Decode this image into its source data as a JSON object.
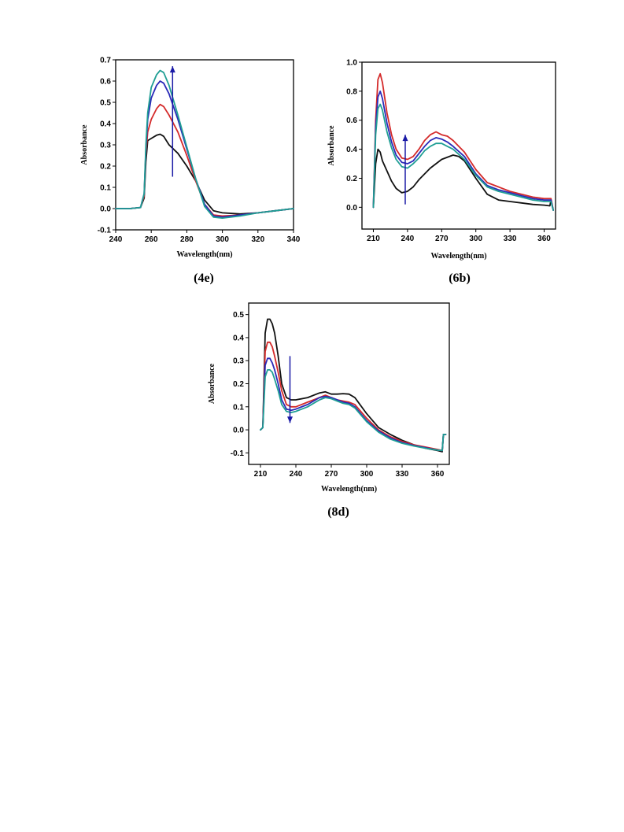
{
  "chart_data": [
    {
      "id": "4e",
      "type": "line",
      "caption": "(4e)",
      "xlabel": "Wavelength(nm)",
      "ylabel": "Absorbance",
      "xlim": [
        240,
        340
      ],
      "ylim": [
        -0.1,
        0.7
      ],
      "xticks": [
        240,
        260,
        280,
        300,
        320,
        340
      ],
      "yticks": [
        -0.1,
        0.0,
        0.1,
        0.2,
        0.3,
        0.4,
        0.5,
        0.6,
        0.7
      ],
      "arrow": {
        "direction": "up",
        "x": 272,
        "y_from": 0.15,
        "y_to": 0.67,
        "color": "#1a1aa6"
      },
      "series": [
        {
          "color": "#111111",
          "x": [
            240,
            248,
            254,
            256,
            257,
            258,
            260,
            263,
            265,
            267,
            270,
            275,
            280,
            285,
            290,
            295,
            300,
            310,
            320,
            330,
            340
          ],
          "y": [
            0.0,
            0.0,
            0.005,
            0.05,
            0.22,
            0.32,
            0.33,
            0.345,
            0.35,
            0.34,
            0.3,
            0.26,
            0.2,
            0.13,
            0.04,
            -0.01,
            -0.02,
            -0.025,
            -0.02,
            -0.01,
            0.0
          ]
        },
        {
          "color": "#d42a2a",
          "x": [
            240,
            248,
            254,
            256,
            257,
            258,
            260,
            263,
            265,
            267,
            270,
            275,
            280,
            285,
            290,
            295,
            300,
            310,
            320,
            330,
            340
          ],
          "y": [
            0.0,
            0.0,
            0.005,
            0.06,
            0.26,
            0.36,
            0.42,
            0.47,
            0.49,
            0.48,
            0.44,
            0.36,
            0.25,
            0.13,
            0.02,
            -0.03,
            -0.035,
            -0.03,
            -0.02,
            -0.01,
            0.0
          ]
        },
        {
          "color": "#2a2ab8",
          "x": [
            240,
            248,
            254,
            256,
            257,
            258,
            260,
            263,
            265,
            267,
            270,
            275,
            280,
            285,
            290,
            295,
            300,
            310,
            320,
            330,
            340
          ],
          "y": [
            0.0,
            0.0,
            0.005,
            0.07,
            0.28,
            0.42,
            0.52,
            0.58,
            0.6,
            0.59,
            0.54,
            0.42,
            0.28,
            0.14,
            0.02,
            -0.035,
            -0.04,
            -0.03,
            -0.02,
            -0.01,
            0.0
          ]
        },
        {
          "color": "#1f9e94",
          "x": [
            240,
            248,
            254,
            256,
            257,
            258,
            260,
            263,
            265,
            267,
            270,
            275,
            280,
            285,
            290,
            295,
            300,
            310,
            320,
            330,
            340
          ],
          "y": [
            0.0,
            0.0,
            0.005,
            0.07,
            0.3,
            0.45,
            0.57,
            0.63,
            0.65,
            0.64,
            0.58,
            0.44,
            0.29,
            0.14,
            0.01,
            -0.04,
            -0.045,
            -0.035,
            -0.02,
            -0.01,
            0.0
          ]
        }
      ]
    },
    {
      "id": "6b",
      "type": "line",
      "caption": "(6b)",
      "xlabel": "Wavelength(nm)",
      "ylabel": "Absorbance",
      "xlim": [
        200,
        370
      ],
      "ylim": [
        -0.15,
        1.0
      ],
      "xticks": [
        210,
        240,
        270,
        300,
        330,
        360
      ],
      "yticks": [
        0.0,
        0.2,
        0.4,
        0.6,
        0.8,
        1.0
      ],
      "arrow": {
        "direction": "up",
        "x": 238,
        "y_from": 0.02,
        "y_to": 0.5,
        "color": "#1a1aa6"
      },
      "series": [
        {
          "color": "#111111",
          "x": [
            210,
            212,
            214,
            216,
            218,
            222,
            226,
            230,
            235,
            240,
            245,
            250,
            260,
            270,
            280,
            285,
            290,
            300,
            310,
            320,
            330,
            340,
            350,
            360,
            365,
            366,
            368
          ],
          "y": [
            0.0,
            0.3,
            0.4,
            0.38,
            0.32,
            0.25,
            0.18,
            0.13,
            0.1,
            0.11,
            0.14,
            0.19,
            0.27,
            0.33,
            0.36,
            0.35,
            0.32,
            0.2,
            0.09,
            0.05,
            0.04,
            0.03,
            0.02,
            0.015,
            0.01,
            0.05,
            -0.02
          ]
        },
        {
          "color": "#d42a2a",
          "x": [
            210,
            212,
            214,
            216,
            218,
            222,
            226,
            230,
            235,
            240,
            245,
            250,
            255,
            260,
            265,
            270,
            275,
            280,
            290,
            300,
            310,
            320,
            330,
            340,
            350,
            360,
            365,
            366,
            368
          ],
          "y": [
            0.0,
            0.6,
            0.88,
            0.92,
            0.86,
            0.65,
            0.5,
            0.4,
            0.34,
            0.33,
            0.35,
            0.4,
            0.46,
            0.5,
            0.52,
            0.5,
            0.49,
            0.46,
            0.38,
            0.26,
            0.17,
            0.14,
            0.11,
            0.09,
            0.07,
            0.06,
            0.06,
            0.06,
            -0.02
          ]
        },
        {
          "color": "#2a2ab8",
          "x": [
            210,
            212,
            214,
            216,
            218,
            222,
            226,
            230,
            235,
            240,
            245,
            250,
            255,
            260,
            265,
            270,
            275,
            280,
            290,
            300,
            310,
            320,
            330,
            340,
            350,
            360,
            365,
            366,
            368
          ],
          "y": [
            0.0,
            0.55,
            0.76,
            0.8,
            0.75,
            0.58,
            0.45,
            0.36,
            0.31,
            0.3,
            0.32,
            0.37,
            0.42,
            0.46,
            0.48,
            0.47,
            0.45,
            0.42,
            0.35,
            0.23,
            0.15,
            0.12,
            0.1,
            0.08,
            0.06,
            0.05,
            0.05,
            0.05,
            -0.02
          ]
        },
        {
          "color": "#1f9e94",
          "x": [
            210,
            212,
            214,
            216,
            218,
            222,
            226,
            230,
            235,
            240,
            245,
            250,
            255,
            260,
            265,
            270,
            275,
            280,
            290,
            300,
            310,
            320,
            330,
            340,
            350,
            360,
            365,
            366,
            368
          ],
          "y": [
            0.0,
            0.5,
            0.68,
            0.71,
            0.67,
            0.52,
            0.41,
            0.33,
            0.28,
            0.27,
            0.3,
            0.34,
            0.39,
            0.42,
            0.44,
            0.44,
            0.42,
            0.4,
            0.33,
            0.22,
            0.14,
            0.11,
            0.09,
            0.07,
            0.05,
            0.04,
            0.04,
            0.04,
            -0.02
          ]
        }
      ]
    },
    {
      "id": "8d",
      "type": "line",
      "caption": "(8d)",
      "xlabel": "Wavelength(nm)",
      "ylabel": "Absorbance",
      "xlim": [
        200,
        370
      ],
      "ylim": [
        -0.15,
        0.55
      ],
      "xticks": [
        210,
        240,
        270,
        300,
        330,
        360
      ],
      "yticks": [
        -0.1,
        0.0,
        0.1,
        0.2,
        0.3,
        0.4,
        0.5
      ],
      "arrow": {
        "direction": "down",
        "x": 235,
        "y_from": 0.32,
        "y_to": 0.03,
        "color": "#1a1aa6"
      },
      "series": [
        {
          "color": "#111111",
          "x": [
            210,
            212,
            214,
            216,
            218,
            220,
            222,
            225,
            228,
            232,
            236,
            240,
            250,
            260,
            265,
            270,
            275,
            280,
            285,
            290,
            300,
            310,
            320,
            330,
            340,
            350,
            360,
            364,
            365,
            367
          ],
          "y": [
            0.0,
            0.01,
            0.42,
            0.48,
            0.48,
            0.46,
            0.42,
            0.32,
            0.2,
            0.14,
            0.13,
            0.13,
            0.14,
            0.16,
            0.165,
            0.155,
            0.155,
            0.157,
            0.155,
            0.14,
            0.07,
            0.01,
            -0.02,
            -0.045,
            -0.065,
            -0.08,
            -0.09,
            -0.095,
            -0.02,
            -0.02
          ]
        },
        {
          "color": "#d42a2a",
          "x": [
            210,
            212,
            214,
            216,
            218,
            220,
            222,
            225,
            228,
            232,
            236,
            240,
            250,
            260,
            265,
            270,
            275,
            280,
            285,
            290,
            300,
            310,
            320,
            330,
            340,
            350,
            360,
            364,
            365,
            367
          ],
          "y": [
            0.0,
            0.01,
            0.34,
            0.38,
            0.38,
            0.36,
            0.32,
            0.25,
            0.17,
            0.11,
            0.1,
            0.1,
            0.12,
            0.14,
            0.15,
            0.14,
            0.13,
            0.125,
            0.12,
            0.11,
            0.05,
            0.0,
            -0.03,
            -0.05,
            -0.065,
            -0.075,
            -0.085,
            -0.09,
            -0.02,
            -0.02
          ]
        },
        {
          "color": "#2a2ab8",
          "x": [
            210,
            212,
            214,
            216,
            218,
            220,
            222,
            225,
            228,
            232,
            236,
            240,
            250,
            260,
            265,
            270,
            275,
            280,
            285,
            290,
            300,
            310,
            320,
            330,
            340,
            350,
            360,
            364,
            365,
            367
          ],
          "y": [
            0.0,
            0.01,
            0.28,
            0.31,
            0.31,
            0.29,
            0.26,
            0.2,
            0.13,
            0.09,
            0.085,
            0.09,
            0.11,
            0.14,
            0.145,
            0.14,
            0.13,
            0.12,
            0.115,
            0.1,
            0.04,
            -0.005,
            -0.035,
            -0.055,
            -0.068,
            -0.078,
            -0.088,
            -0.09,
            -0.02,
            -0.02
          ]
        },
        {
          "color": "#1f9e94",
          "x": [
            210,
            212,
            214,
            216,
            218,
            220,
            222,
            225,
            228,
            232,
            236,
            240,
            250,
            260,
            265,
            270,
            275,
            280,
            285,
            290,
            300,
            310,
            320,
            330,
            340,
            350,
            360,
            364,
            365,
            367
          ],
          "y": [
            0.0,
            0.01,
            0.23,
            0.26,
            0.26,
            0.25,
            0.22,
            0.17,
            0.11,
            0.08,
            0.075,
            0.08,
            0.1,
            0.13,
            0.14,
            0.135,
            0.125,
            0.115,
            0.11,
            0.095,
            0.035,
            -0.01,
            -0.04,
            -0.058,
            -0.07,
            -0.08,
            -0.088,
            -0.09,
            -0.02,
            -0.02
          ]
        }
      ]
    }
  ]
}
